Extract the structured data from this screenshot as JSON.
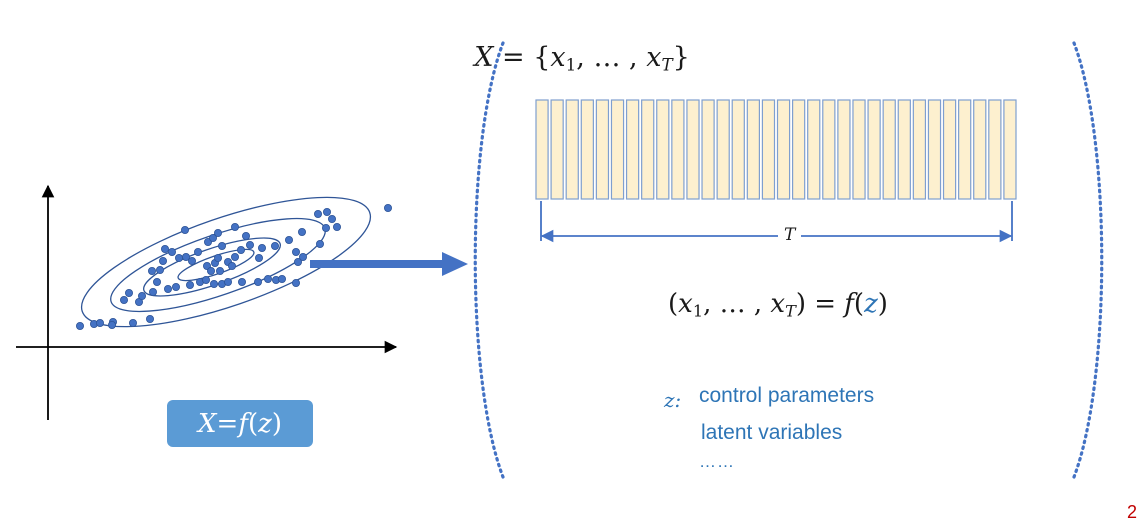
{
  "formulas": {
    "set": {
      "lhs": "X",
      "eq": " = {",
      "x1": "x",
      "sub1": "1",
      "mid": ", … , ",
      "xT": "x",
      "subT": "T",
      "close": "}"
    },
    "sequence": {
      "open": "(",
      "x1": "x",
      "sub1": "1",
      "mid": ", … , ",
      "xT": "x",
      "subT": "T",
      "rhs": ") = ",
      "f": "f",
      "lp": "(",
      "z": "z",
      "rp": ")"
    },
    "badge": {
      "lhs": "X",
      "eq": " = ",
      "f": "f",
      "lp": "(",
      "z": "z",
      "rp": ")"
    }
  },
  "sequence_length_label": "T",
  "notes": {
    "symbol": "z:",
    "lines": [
      "control parameters",
      "latent variables",
      "……"
    ]
  },
  "page_number": "2",
  "colors": {
    "accent_blue": "#4472c4",
    "light_blue": "#5b9bd5",
    "text_blue": "#2e75b6",
    "cell_fill": "#fdf0cf",
    "cell_stroke": "#7f9fcf",
    "point_fill": "#4472c4",
    "point_stroke": "#2f5597",
    "page_number": "#c00000"
  },
  "sequence_cell_count": 32
}
